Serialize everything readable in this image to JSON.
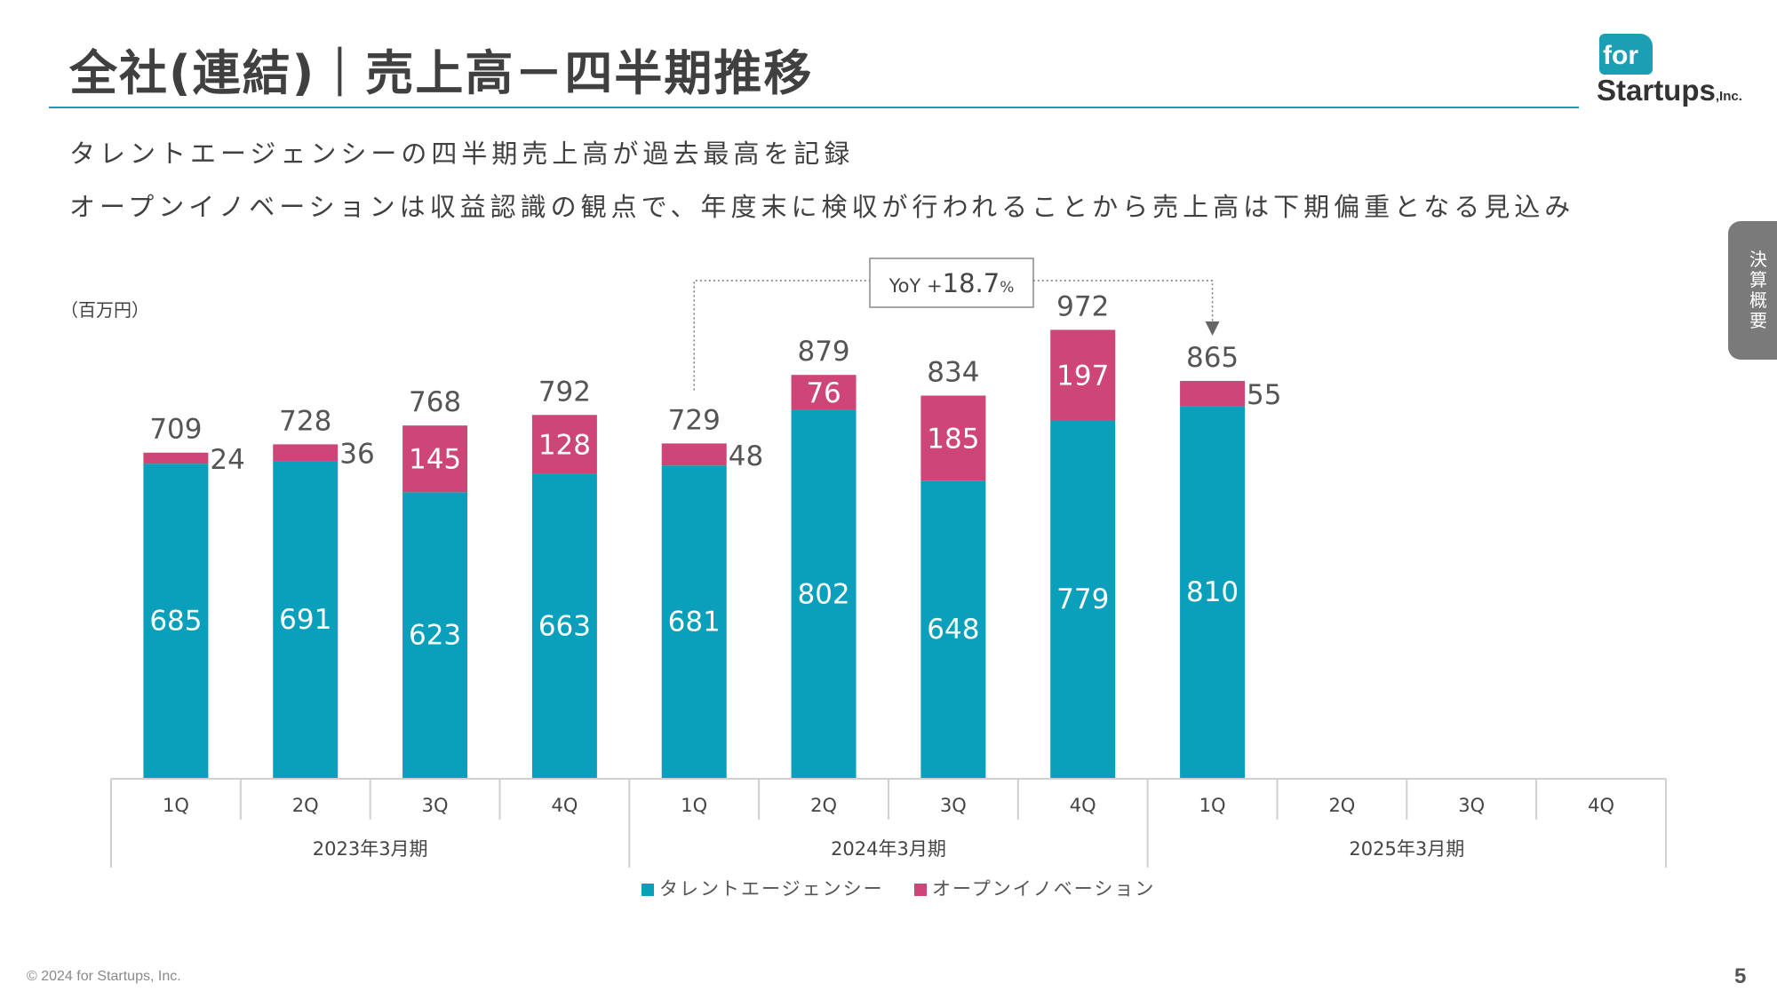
{
  "header": {
    "title": "全社(連結)｜売上高－四半期推移",
    "subtitle_1": "タレントエージェンシーの四半期売上高が過去最高を記録",
    "subtitle_2": "オープンイノベーションは収益認識の観点で、年度末に検収が行われることから売上高は下期偏重となる見込み"
  },
  "logo": {
    "top": "for",
    "main": "Startups",
    "suffix": ",Inc."
  },
  "side_tab": {
    "label": "決算概要"
  },
  "footer": {
    "copyright": "© 2024 for Startups, Inc.",
    "page_number": "5"
  },
  "colors": {
    "talent_agency": "#0a9fbb",
    "open_innovation": "#cd4677",
    "accent": "#1a9fb3"
  },
  "chart_data": {
    "type": "bar",
    "stacked": true,
    "unit_label": "（百万円）",
    "annotation": {
      "prefix": "YoY +",
      "value": "18.7",
      "suffix": "%",
      "from_index": 4,
      "to_index": 8
    },
    "categories": [
      "1Q",
      "2Q",
      "3Q",
      "4Q",
      "1Q",
      "2Q",
      "3Q",
      "4Q",
      "1Q",
      "2Q",
      "3Q",
      "4Q"
    ],
    "groups": [
      {
        "label": "2023年3月期",
        "start": 0,
        "end": 4
      },
      {
        "label": "2024年3月期",
        "start": 4,
        "end": 8
      },
      {
        "label": "2025年3月期",
        "start": 8,
        "end": 12
      }
    ],
    "series": [
      {
        "name": "タレントエージェンシー",
        "color": "#0a9fbb",
        "values": [
          685,
          691,
          623,
          663,
          681,
          802,
          648,
          779,
          810,
          null,
          null,
          null
        ]
      },
      {
        "name": "オープンイノベーション",
        "color": "#cd4677",
        "values": [
          24,
          36,
          145,
          128,
          48,
          76,
          185,
          197,
          55,
          null,
          null,
          null
        ]
      }
    ],
    "totals": [
      709,
      728,
      768,
      792,
      729,
      879,
      834,
      972,
      865,
      null,
      null,
      null
    ],
    "ylim": [
      0,
      1000
    ],
    "legend_position": "bottom-center"
  }
}
